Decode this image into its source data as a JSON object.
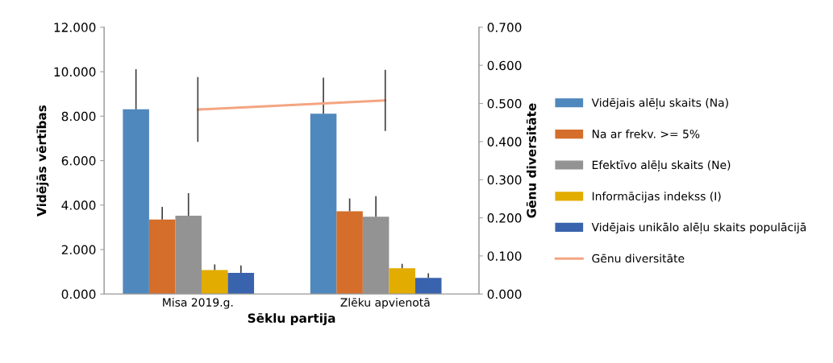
{
  "chart_data": {
    "type": "bar",
    "xlabel": "Sēklu partija",
    "ylabel": "Vidējās vērtības",
    "y2label": "Gēnu diversitāte",
    "categories": [
      "Misa 2019.g.",
      "Zlēku apvienotā"
    ],
    "series": [
      {
        "name": "Vidējais alēļu skaits (Na)",
        "color": "#4f88bd",
        "values": [
          8.31,
          8.11
        ],
        "errors": [
          1.8,
          1.62
        ]
      },
      {
        "name": "Na ar frekv. >= 5%",
        "color": "#d46e2a",
        "values": [
          3.35,
          3.72
        ],
        "errors": [
          0.57,
          0.58
        ]
      },
      {
        "name": "Efektīvo alēļu skaits (Ne)",
        "color": "#939393",
        "values": [
          3.52,
          3.48
        ],
        "errors": [
          1.02,
          0.92
        ]
      },
      {
        "name": "Informācijas indekss (I)",
        "color": "#e2ac00",
        "values": [
          1.08,
          1.16
        ],
        "errors": [
          0.25,
          0.2
        ]
      },
      {
        "name": "Vidējais unikālo alēļu skaits populācijā",
        "color": "#3a63ad",
        "values": [
          0.95,
          0.73
        ],
        "errors": [
          0.34,
          0.2
        ]
      },
      {
        "name": "Gēnu diversitāte",
        "type": "line",
        "axis": "y2",
        "color": "#f4a582",
        "values": [
          0.484,
          0.508
        ],
        "errors": [
          0.085,
          0.08
        ]
      }
    ],
    "ylim": [
      0,
      12
    ],
    "yticks": [
      {
        "value": 0,
        "label": "0.000"
      },
      {
        "value": 2,
        "label": "2.000"
      },
      {
        "value": 4,
        "label": "4.000"
      },
      {
        "value": 6,
        "label": "6.000"
      },
      {
        "value": 8,
        "label": "8.000"
      },
      {
        "value": 10,
        "label": "10.000"
      },
      {
        "value": 12,
        "label": "12.000"
      }
    ],
    "y2lim": [
      0,
      0.7
    ],
    "y2ticks": [
      {
        "value": 0,
        "label": "0.000"
      },
      {
        "value": 0.1,
        "label": "0.100"
      },
      {
        "value": 0.2,
        "label": "0.200"
      },
      {
        "value": 0.3,
        "label": "0.300"
      },
      {
        "value": 0.4,
        "label": "0.400"
      },
      {
        "value": 0.5,
        "label": "0.500"
      },
      {
        "value": 0.6,
        "label": "0.600"
      },
      {
        "value": 0.7,
        "label": "0.700"
      }
    ],
    "grid": false,
    "legend": "right",
    "marker": "none"
  }
}
